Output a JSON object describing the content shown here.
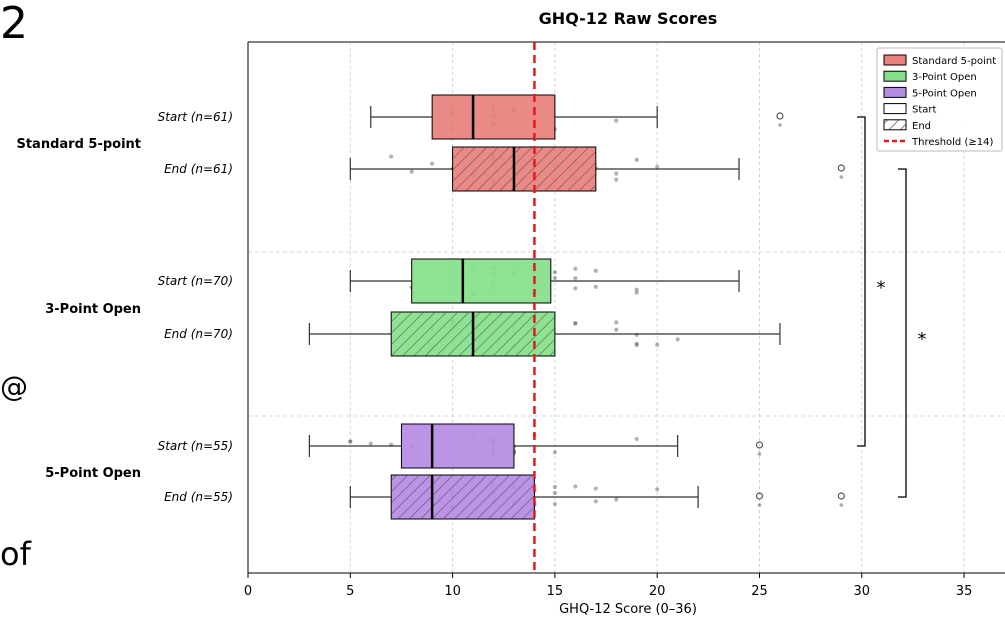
{
  "page_fragments": {
    "top_left": "2",
    "mid_left": "@",
    "bottom_left": "of"
  },
  "chart_data": {
    "type": "boxplot",
    "title": "GHQ-12 Raw Scores",
    "xlabel": "GHQ-12 Score (0–36)",
    "xlim": [
      0,
      37
    ],
    "xticks": [
      0,
      5,
      10,
      15,
      20,
      25,
      30,
      35
    ],
    "grid": true,
    "orientation": "horizontal",
    "legend_position": "top-right",
    "threshold": {
      "value": 14,
      "label": "Threshold (≥14)",
      "color": "#e31a1c"
    },
    "legend": [
      {
        "label": "Standard 5-point",
        "kind": "fill",
        "color": "#e8807c"
      },
      {
        "label": "3-Point Open",
        "kind": "fill",
        "color": "#86e08a"
      },
      {
        "label": "5-Point Open",
        "kind": "fill",
        "color": "#b58be4"
      },
      {
        "label": "Start",
        "kind": "plain"
      },
      {
        "label": "End",
        "kind": "hatch"
      },
      {
        "label": "Threshold (≥14)",
        "kind": "dashed"
      }
    ],
    "groups": [
      {
        "name": "Standard 5-point",
        "color": "#e8807c",
        "boxes": [
          {
            "label": "Start (n=61)",
            "phase": "Start",
            "whisker_low": 6,
            "q1": 9,
            "median": 11,
            "q3": 15,
            "whisker_high": 20,
            "outliers": [
              26
            ]
          },
          {
            "label": "End (n=61)",
            "phase": "End",
            "whisker_low": 5,
            "q1": 10,
            "median": 13,
            "q3": 17,
            "whisker_high": 24,
            "outliers": [
              29
            ]
          }
        ]
      },
      {
        "name": "3-Point Open",
        "color": "#86e08a",
        "boxes": [
          {
            "label": "Start (n=70)",
            "phase": "Start",
            "whisker_low": 5,
            "q1": 8,
            "median": 10.5,
            "q3": 14.8,
            "whisker_high": 24,
            "outliers": []
          },
          {
            "label": "End (n=70)",
            "phase": "End",
            "whisker_low": 3,
            "q1": 7,
            "median": 11,
            "q3": 15,
            "whisker_high": 26,
            "outliers": []
          }
        ]
      },
      {
        "name": "5-Point Open",
        "color": "#b58be4",
        "boxes": [
          {
            "label": "Start (n=55)",
            "phase": "Start",
            "whisker_low": 3,
            "q1": 7.5,
            "median": 9,
            "q3": 13,
            "whisker_high": 21,
            "outliers": [
              25
            ]
          },
          {
            "label": "End (n=55)",
            "phase": "End",
            "whisker_low": 5,
            "q1": 7,
            "median": 9,
            "q3": 14,
            "whisker_high": 22,
            "outliers": [
              25,
              29
            ]
          }
        ]
      }
    ],
    "significance": [
      {
        "label": "*",
        "from_box": "Start (n=61)",
        "to_box": "Start (n=55)"
      },
      {
        "label": "*",
        "from_box": "End (n=61)",
        "to_box": "End (n=55)"
      }
    ]
  }
}
